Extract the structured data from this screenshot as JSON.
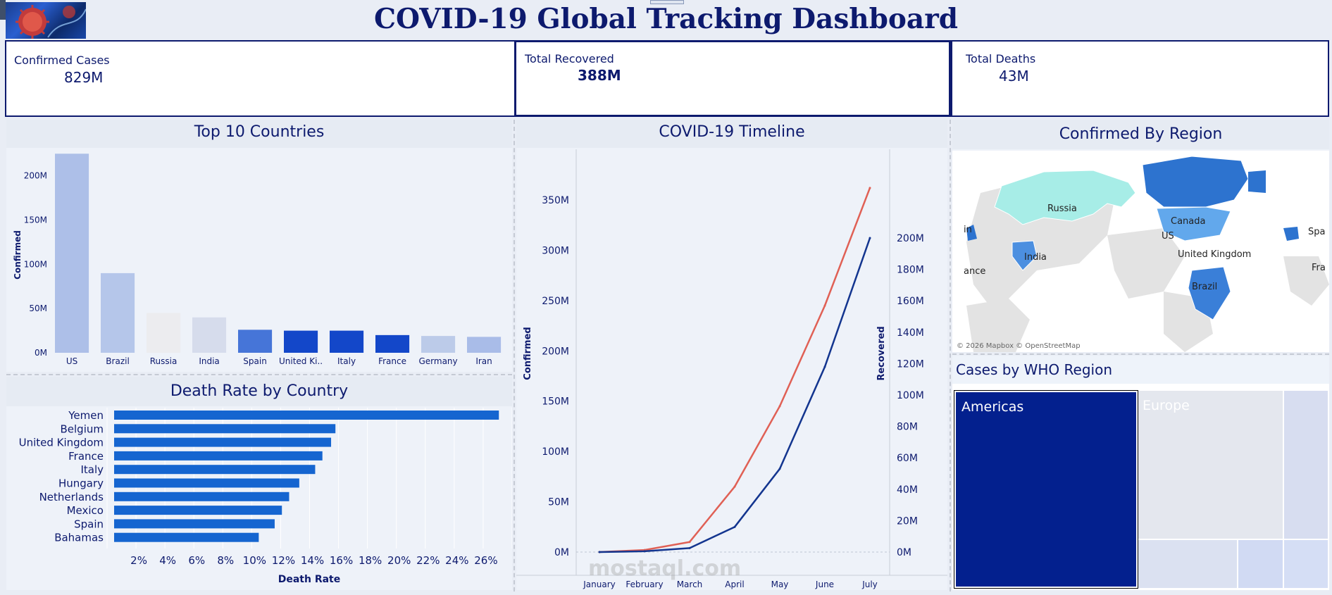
{
  "title": "COVID-19 Global Tracking Dashboard",
  "kpis": {
    "confirmed": {
      "label": "Confirmed Cases",
      "value": "829M"
    },
    "recovered": {
      "label": "Total Recovered",
      "value": "388M"
    },
    "deaths": {
      "label": "Total Deaths",
      "value": "43M"
    }
  },
  "top10": {
    "title": "Top 10 Countries",
    "ylabel": "Confirmed",
    "ticks": [
      "0M",
      "50M",
      "100M",
      "150M",
      "200M"
    ]
  },
  "deathrate": {
    "title": "Death Rate by Country",
    "xlabel": "Death Rate",
    "ticks": [
      "2%",
      "4%",
      "6%",
      "8%",
      "10%",
      "12%",
      "14%",
      "16%",
      "18%",
      "20%",
      "22%",
      "24%",
      "26%"
    ]
  },
  "timeline": {
    "title": "COVID-19 Timeline",
    "ylabel_left": "Confirmed",
    "ylabel_right": "Recovered",
    "left_ticks": [
      "0M",
      "50M",
      "100M",
      "150M",
      "200M",
      "250M",
      "300M",
      "350M"
    ],
    "right_ticks": [
      "0M",
      "20M",
      "40M",
      "60M",
      "80M",
      "100M",
      "120M",
      "140M",
      "160M",
      "180M",
      "200M"
    ]
  },
  "map": {
    "title": "Confirmed By Region",
    "labels": [
      "Russia",
      "Canada",
      "US",
      "United Kingdom",
      "India",
      "Brazil",
      "ance",
      "Spa",
      "Fra",
      "in"
    ],
    "credit": "© 2026 Mapbox © OpenStreetMap"
  },
  "who": {
    "title": "Cases by WHO Region",
    "regions": [
      "Americas",
      "Europe"
    ]
  },
  "watermark": "mostaql.com",
  "colors": {
    "navy": "#0d1a6e",
    "confirmed_line": "#e06055",
    "recovered_line": "#13358f",
    "bar_dark": "#1347c9",
    "bar_mid": "#4675d8",
    "bar_light": "#adbfe8",
    "hbar": "#1565d0",
    "americas": "#03208e"
  },
  "chart_data": [
    {
      "type": "bar",
      "title": "Top 10 Countries",
      "ylabel": "Confirmed",
      "categories": [
        "US",
        "Brazil",
        "Russia",
        "India",
        "Spain",
        "United Ki..",
        "Italy",
        "France",
        "Germany",
        "Iran"
      ],
      "values": [
        225,
        90,
        45,
        40,
        26,
        25,
        25,
        20,
        19,
        18
      ],
      "colors": [
        "#adbfe8",
        "#b5c6ea",
        "#ececef",
        "#d6dcec",
        "#4675d8",
        "#1347c9",
        "#1347c9",
        "#1347c9",
        "#bccbe9",
        "#a9bce8"
      ],
      "ylim": [
        0,
        230
      ],
      "unit": "M"
    },
    {
      "type": "bar",
      "orientation": "horizontal",
      "title": "Death Rate by Country",
      "xlabel": "Death Rate",
      "categories": [
        "Yemen",
        "Belgium",
        "United Kingdom",
        "France",
        "Italy",
        "Hungary",
        "Netherlands",
        "Mexico",
        "Spain",
        "Bahamas"
      ],
      "values": [
        26.6,
        15.3,
        15.0,
        14.4,
        13.9,
        12.8,
        12.1,
        11.6,
        11.1,
        10.0
      ],
      "xlim": [
        0,
        28
      ],
      "unit": "%"
    },
    {
      "type": "line",
      "title": "COVID-19 Timeline",
      "x": [
        "January",
        "February",
        "March",
        "April",
        "May",
        "June",
        "July"
      ],
      "series": [
        {
          "name": "Confirmed",
          "axis": "left",
          "values": [
            0,
            2,
            10,
            65,
            145,
            245,
            362
          ],
          "color": "#e06055"
        },
        {
          "name": "Recovered",
          "axis": "right",
          "values": [
            0,
            0.5,
            2.5,
            16,
            53,
            118,
            200
          ],
          "color": "#13358f"
        }
      ],
      "ylim_left": [
        0,
        380
      ],
      "ylim_right": [
        0,
        210
      ]
    }
  ]
}
